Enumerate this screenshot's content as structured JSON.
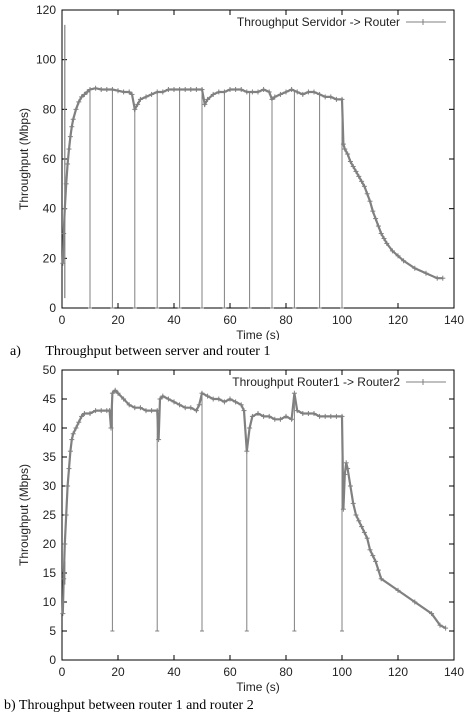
{
  "captions": {
    "a": "a)       Throughput between server and router 1",
    "b": "b) Throughput between router 1 and router 2"
  },
  "chart_data": [
    {
      "type": "line",
      "title": "",
      "xlabel": "Time (s)",
      "ylabel": "Throughput (Mbps)",
      "xlim": [
        0,
        140
      ],
      "ylim": [
        0,
        120
      ],
      "xticks": [
        0,
        20,
        40,
        60,
        80,
        100,
        120,
        140
      ],
      "yticks": [
        0,
        20,
        40,
        60,
        80,
        100,
        120
      ],
      "grid": false,
      "legend_position": "top-right",
      "color": "#808080",
      "series": [
        {
          "name": "Throughput Servidor -> Router",
          "x": [
            0.3,
            0.6,
            1,
            1.5,
            2,
            2.5,
            3,
            3.5,
            4,
            5,
            6,
            7,
            8,
            9,
            10,
            12,
            14,
            16,
            18,
            20,
            22,
            24,
            25,
            26,
            27,
            28,
            30,
            32,
            34,
            36,
            38,
            40,
            42,
            44,
            46,
            48,
            50,
            51,
            52,
            54,
            56,
            58,
            60,
            62,
            64,
            66,
            68,
            70,
            72,
            74,
            75,
            76,
            78,
            80,
            82,
            84,
            86,
            88,
            90,
            92,
            94,
            96,
            98,
            100,
            100.5,
            101,
            102,
            103,
            104,
            105,
            106,
            107,
            108,
            109,
            110,
            111,
            112,
            113,
            114,
            115,
            116,
            118,
            120,
            122,
            126,
            130,
            134,
            136
          ],
          "y": [
            18,
            30,
            40,
            50,
            58,
            64,
            69,
            73,
            76,
            80,
            83,
            85,
            86,
            87,
            88,
            88.5,
            88,
            88,
            88,
            87.5,
            87,
            87,
            86,
            80,
            82,
            84,
            85,
            86,
            87,
            87,
            88,
            88,
            88,
            88,
            88,
            88,
            88,
            82,
            84,
            86,
            87,
            87,
            88,
            88,
            88,
            87,
            87,
            87,
            88,
            87,
            84,
            85,
            86,
            87,
            88,
            87,
            86,
            87,
            87,
            86,
            85,
            85,
            84,
            84,
            66,
            64,
            62,
            59,
            57,
            55,
            53,
            51,
            49,
            46,
            43,
            39,
            36,
            33,
            30,
            28,
            26,
            23,
            21,
            19,
            16,
            14,
            12,
            12
          ]
        }
      ],
      "spikes_x": [
        10,
        18,
        26,
        34,
        42,
        50,
        58,
        67,
        75,
        83,
        92,
        100
      ],
      "spikes_low": 0,
      "spikes_high_x": 1,
      "spikes_high": 114
    },
    {
      "type": "line",
      "title": "",
      "xlabel": "Time (s)",
      "ylabel": "Throughput (Mbps)",
      "xlim": [
        0,
        140
      ],
      "ylim": [
        0,
        50
      ],
      "xticks": [
        0,
        20,
        40,
        60,
        80,
        100,
        120,
        140
      ],
      "yticks": [
        0,
        5,
        10,
        15,
        20,
        25,
        30,
        35,
        40,
        45,
        50
      ],
      "grid": false,
      "legend_position": "top-right",
      "color": "#808080",
      "series": [
        {
          "name": "Throughput Router1 -> Router2",
          "x": [
            0.3,
            0.6,
            1,
            1.5,
            2,
            2.5,
            3,
            3.5,
            4,
            5,
            6,
            7,
            8,
            10,
            12,
            14,
            16,
            17,
            17.5,
            18,
            19,
            20,
            22,
            24,
            26,
            28,
            30,
            32,
            34,
            34.5,
            35,
            36,
            38,
            40,
            42,
            44,
            46,
            48,
            49,
            50,
            52,
            54,
            56,
            58,
            60,
            62,
            64,
            65,
            66,
            67,
            68,
            70,
            72,
            74,
            76,
            78,
            80,
            82,
            83,
            84,
            86,
            88,
            90,
            92,
            94,
            96,
            98,
            100,
            100.5,
            101,
            101.5,
            102,
            103,
            104,
            105,
            106,
            107,
            108,
            109,
            110,
            111,
            112,
            113,
            114,
            120,
            126,
            132,
            135,
            137
          ],
          "y": [
            8,
            14,
            20,
            25,
            30,
            33,
            36,
            38,
            39,
            40,
            41,
            42,
            42.5,
            42.5,
            43,
            43,
            43,
            43,
            40,
            46,
            46.5,
            46,
            45,
            44,
            43.5,
            43.5,
            43,
            43,
            43,
            38,
            45,
            45.5,
            45,
            44.5,
            44,
            43.5,
            43.5,
            43,
            44,
            46,
            45.5,
            45,
            45,
            44.5,
            45,
            44.5,
            44,
            43,
            36,
            40,
            42,
            42.5,
            42,
            42,
            41.5,
            41.5,
            42,
            41.5,
            46,
            43,
            42.5,
            42.5,
            42.5,
            42,
            42,
            42,
            42,
            42,
            26,
            32,
            34,
            33,
            30,
            27,
            25,
            24,
            23,
            22,
            21,
            19,
            18,
            17,
            15.5,
            14,
            12,
            10,
            8,
            6,
            5.5
          ]
        }
      ],
      "spikes_x": [
        18,
        34,
        50,
        66,
        83,
        100
      ],
      "spikes_low": 5,
      "spikes_high_x": 1,
      "spikes_high": 13
    }
  ]
}
